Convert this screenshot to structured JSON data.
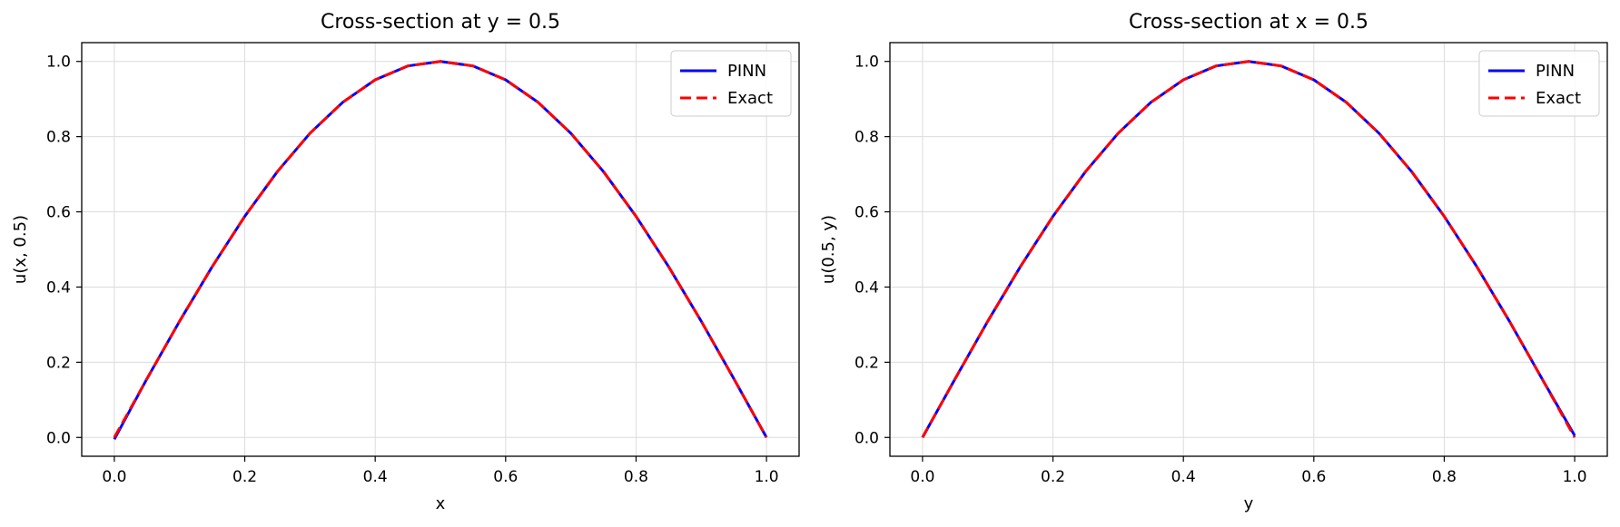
{
  "chart_data": [
    {
      "type": "line",
      "title": "Cross-section at y = 0.5",
      "xlabel": "x",
      "ylabel": "u(x, 0.5)",
      "xlim": [
        -0.05,
        1.05
      ],
      "ylim": [
        -0.05,
        1.05
      ],
      "xticks": [
        "0.0",
        "0.2",
        "0.4",
        "0.6",
        "0.8",
        "1.0"
      ],
      "yticks": [
        "0.0",
        "0.2",
        "0.4",
        "0.6",
        "0.8",
        "1.0"
      ],
      "grid": true,
      "legend_position": "top-right",
      "x": [
        0.0,
        0.05,
        0.1,
        0.15,
        0.2,
        0.25,
        0.3,
        0.35,
        0.4,
        0.45,
        0.5,
        0.55,
        0.6,
        0.65,
        0.7,
        0.75,
        0.8,
        0.85,
        0.9,
        0.95,
        1.0
      ],
      "series": [
        {
          "name": "PINN",
          "color": "#0000ff",
          "style": "solid",
          "values": [
            -0.005,
            0.156,
            0.309,
            0.454,
            0.588,
            0.707,
            0.809,
            0.891,
            0.951,
            0.988,
            1.0,
            0.988,
            0.951,
            0.891,
            0.809,
            0.707,
            0.588,
            0.454,
            0.309,
            0.156,
            0.0
          ]
        },
        {
          "name": "Exact",
          "color": "#ff0000",
          "style": "dashed",
          "values": [
            0.0,
            0.156,
            0.309,
            0.454,
            0.588,
            0.707,
            0.809,
            0.891,
            0.951,
            0.988,
            1.0,
            0.988,
            0.951,
            0.891,
            0.809,
            0.707,
            0.588,
            0.454,
            0.309,
            0.156,
            0.0
          ]
        }
      ]
    },
    {
      "type": "line",
      "title": "Cross-section at x = 0.5",
      "xlabel": "y",
      "ylabel": "u(0.5, y)",
      "xlim": [
        -0.05,
        1.05
      ],
      "ylim": [
        -0.05,
        1.05
      ],
      "xticks": [
        "0.0",
        "0.2",
        "0.4",
        "0.6",
        "0.8",
        "1.0"
      ],
      "yticks": [
        "0.0",
        "0.2",
        "0.4",
        "0.6",
        "0.8",
        "1.0"
      ],
      "grid": true,
      "legend_position": "top-right",
      "x": [
        0.0,
        0.05,
        0.1,
        0.15,
        0.2,
        0.25,
        0.3,
        0.35,
        0.4,
        0.45,
        0.5,
        0.55,
        0.6,
        0.65,
        0.7,
        0.75,
        0.8,
        0.85,
        0.9,
        0.95,
        1.0
      ],
      "series": [
        {
          "name": "PINN",
          "color": "#0000ff",
          "style": "solid",
          "values": [
            0.0,
            0.156,
            0.309,
            0.454,
            0.588,
            0.707,
            0.809,
            0.891,
            0.951,
            0.988,
            1.0,
            0.988,
            0.951,
            0.891,
            0.809,
            0.707,
            0.588,
            0.454,
            0.309,
            0.156,
            0.005
          ]
        },
        {
          "name": "Exact",
          "color": "#ff0000",
          "style": "dashed",
          "values": [
            0.0,
            0.156,
            0.309,
            0.454,
            0.588,
            0.707,
            0.809,
            0.891,
            0.951,
            0.988,
            1.0,
            0.988,
            0.951,
            0.891,
            0.809,
            0.707,
            0.588,
            0.454,
            0.309,
            0.156,
            0.0
          ]
        }
      ]
    }
  ]
}
